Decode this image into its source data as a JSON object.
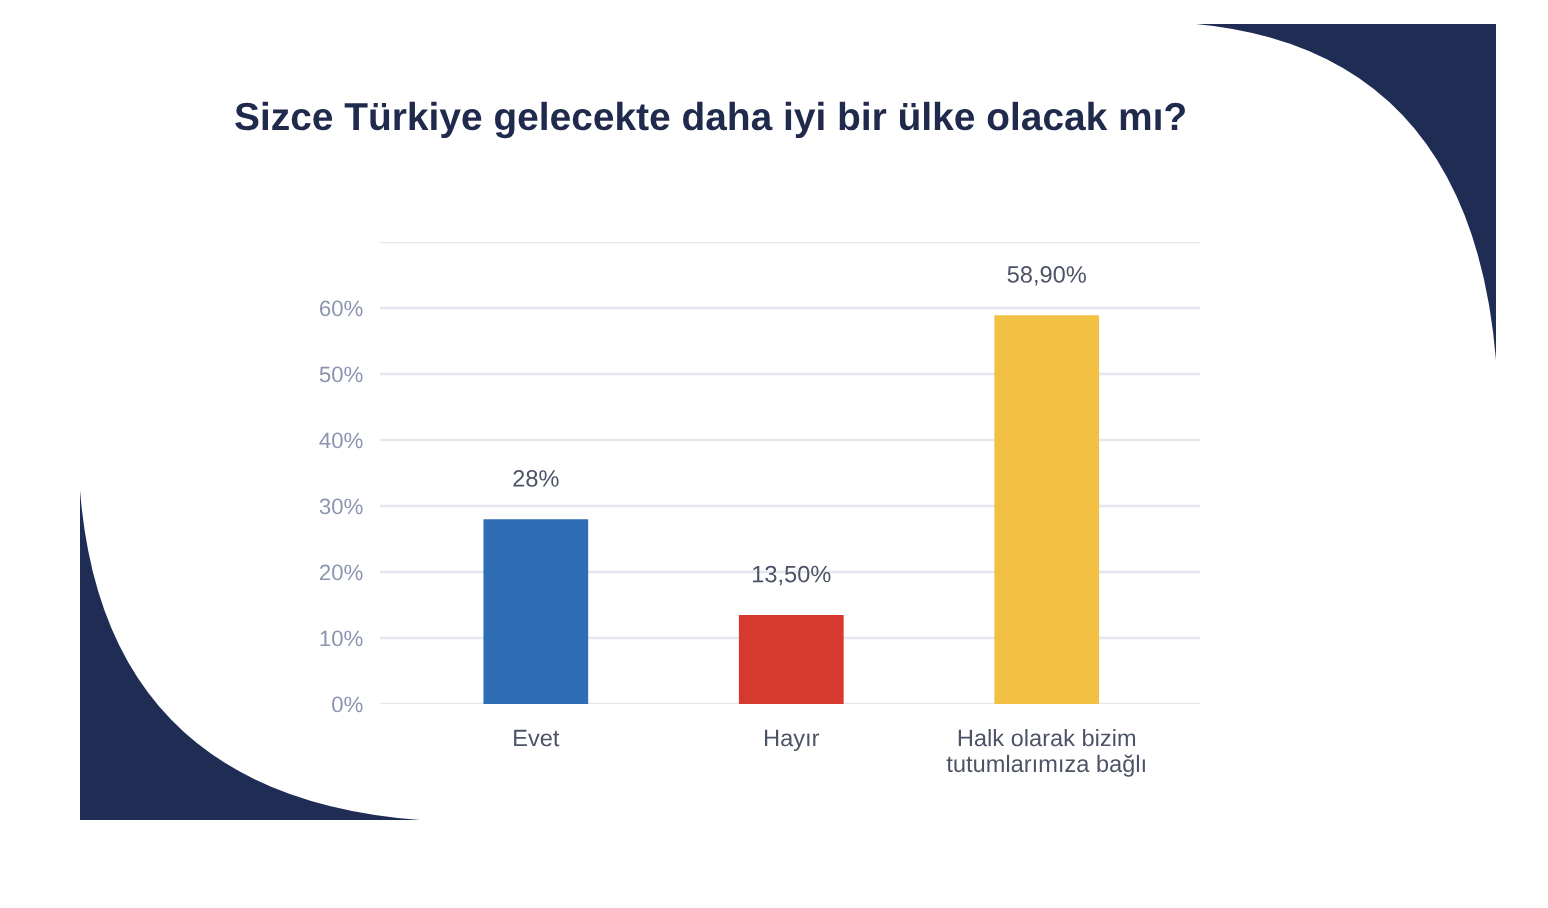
{
  "chart_data": {
    "type": "bar",
    "title": "Sizce Türkiye gelecekte daha iyi bir ülke olacak mı?",
    "categories": [
      "Evet",
      "Hayır",
      "Halk olarak bizim\ntutumlarımıza bağlı"
    ],
    "values": [
      28,
      13.5,
      58.9
    ],
    "colors": [
      "#2f6db5",
      "#d63a2f",
      "#f2c043"
    ],
    "value_labels": [
      "28%",
      "13,50%",
      "58,90%"
    ],
    "ylim": [
      0,
      70
    ],
    "yticks": [
      {
        "value": 0,
        "label": "0%"
      },
      {
        "value": 10,
        "label": "10%"
      },
      {
        "value": 20,
        "label": "20%"
      },
      {
        "value": 30,
        "label": "30%"
      },
      {
        "value": 40,
        "label": "40%"
      },
      {
        "value": 50,
        "label": "50%"
      },
      {
        "value": 60,
        "label": "60%"
      },
      {
        "value": 70,
        "label": null
      }
    ],
    "grid": "y"
  }
}
